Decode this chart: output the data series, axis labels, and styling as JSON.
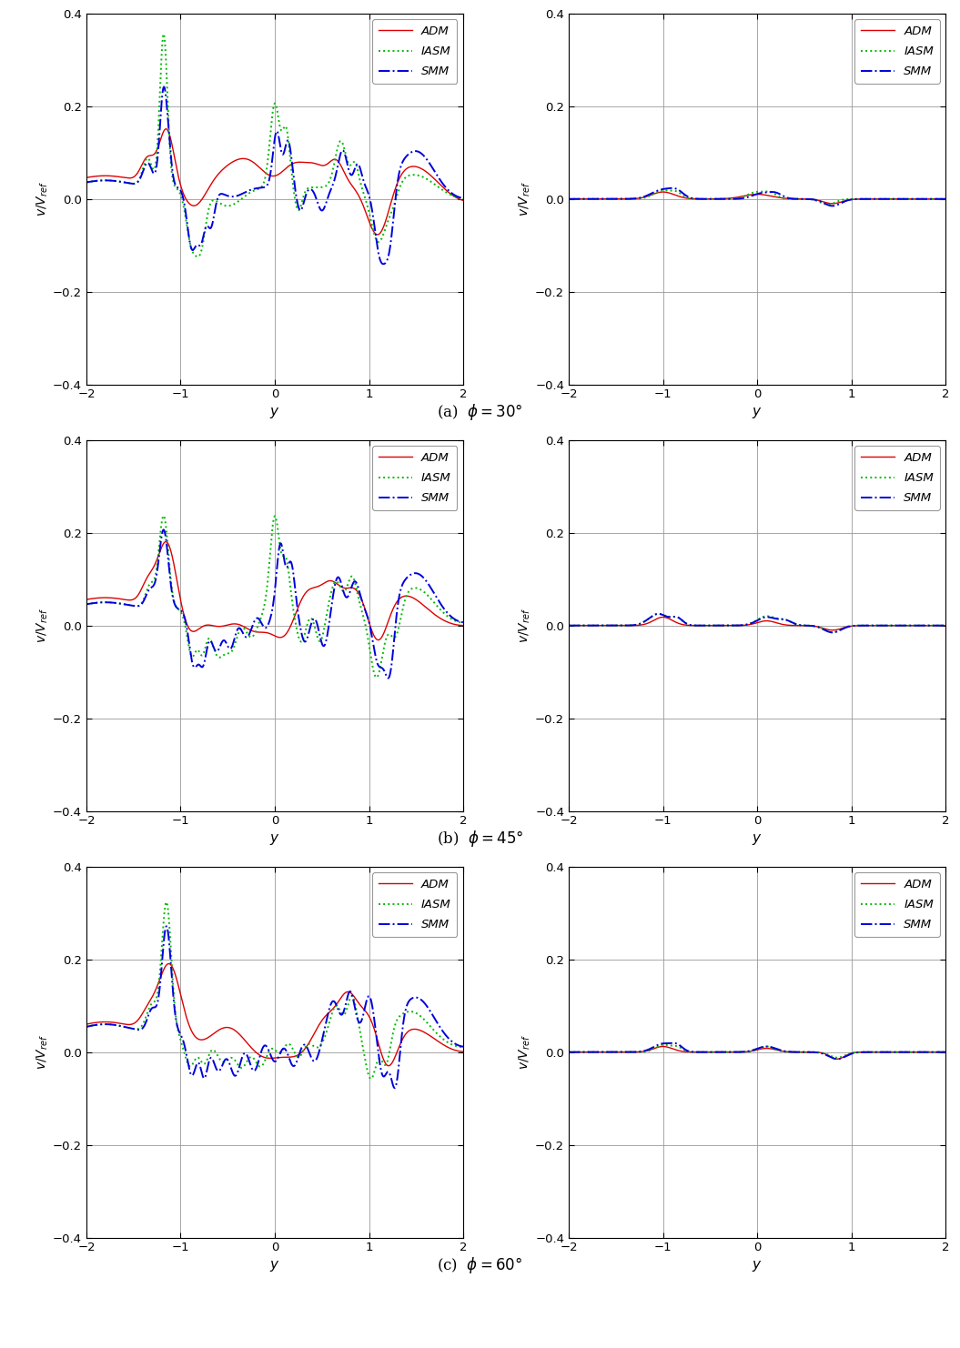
{
  "ylabel": "v/V_ref",
  "xlabel": "y",
  "xlim": [
    -2,
    2
  ],
  "ylim": [
    -0.4,
    0.4
  ],
  "yticks": [
    -0.4,
    -0.2,
    0.0,
    0.2,
    0.4
  ],
  "xticks": [
    -2,
    -1,
    0,
    1,
    2
  ],
  "legend_labels": [
    "ADM",
    "IASM",
    "SMM"
  ],
  "colors": [
    "#dd0000",
    "#00bb00",
    "#0000dd"
  ],
  "linestyles": [
    "-",
    ":",
    "-."
  ],
  "linewidths": [
    1.0,
    1.4,
    1.4
  ],
  "background_color": "#ffffff",
  "grid_color": "#999999",
  "subtitles": [
    "(a)  $\\phi = 30\\degree$",
    "(b)  $\\phi = 45\\degree$",
    "(c)  $\\phi = 60\\degree$"
  ]
}
